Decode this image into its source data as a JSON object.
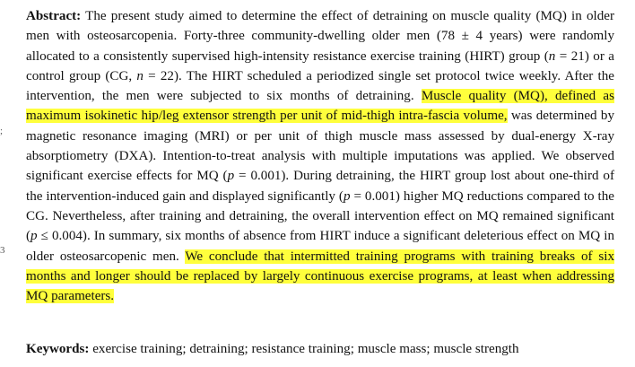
{
  "abstract": {
    "label": "Abstract:",
    "part1": " The present study aimed to determine the effect of detraining on muscle quality (MQ) in older men with osteosarcopenia. Forty-three community-dwelling older men (78 ± 4 years) were randomly allocated to a consistently supervised high-intensity resistance exercise training (HIRT) group (",
    "n1": "n",
    "part2": " = 21) or a control group (CG, ",
    "n2": "n",
    "part3": " = 22). The HIRT scheduled a periodized single set protocol twice weekly. After the intervention, the men were subjected to six months of detraining. ",
    "highlight1": "Muscle quality (MQ), defined as maximum isokinetic hip/leg extensor strength per unit of mid-thigh intra-fascia volume,",
    "part4": " was determined by magnetic resonance imaging (MRI) or per unit of thigh muscle mass assessed by dual-energy X-ray absorptiometry (DXA). Intention-to-treat analysis with multiple imputations was applied. We observed significant exercise effects for MQ (",
    "p1": "p",
    "part5": " = 0.001). During detraining, the HIRT group lost about one-third of the intervention-induced gain and displayed significantly (",
    "p2": "p",
    "part6": " = 0.001) higher MQ reductions compared to the CG. Nevertheless, after training and detraining, the overall intervention effect on MQ remained significant (",
    "p3": "p",
    "part7": " ≤ 0.004). In summary, six months of absence from HIRT induce a significant deleterious effect on MQ in older osteosarcopenic men. ",
    "highlight2": "We conclude that intermitted training programs with training breaks of six months and longer should be replaced by largely continuous exercise programs, at least when addressing MQ parameters."
  },
  "keywords": {
    "label": "Keywords:",
    "text": " exercise training; detraining; resistance training; muscle mass; muscle strength"
  },
  "margin_marks": {
    "mark1": ";",
    "mark2": "3"
  },
  "colors": {
    "highlight": "#ffff3c",
    "text": "#111111"
  }
}
